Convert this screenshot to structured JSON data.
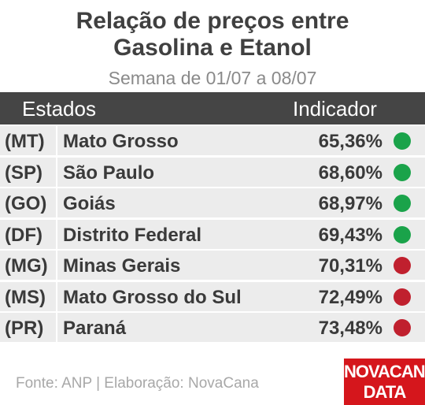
{
  "header": {
    "title": [
      "Relação de preços entre",
      "Gasolina e Etanol"
    ],
    "subtitle": "Semana de 01/07 a 08/07"
  },
  "table": {
    "columns": [
      "Estados",
      "Indicador"
    ],
    "rows": [
      {
        "code": "(MT)",
        "name": "Mato Grosso",
        "value": "65,36%",
        "color": "#1aa34a"
      },
      {
        "code": "(SP)",
        "name": "São Paulo",
        "value": "68,60%",
        "color": "#1aa34a"
      },
      {
        "code": "(GO)",
        "name": "Goiás",
        "value": "68,97%",
        "color": "#1aa34a"
      },
      {
        "code": "(DF)",
        "name": "Distrito Federal",
        "value": "69,43%",
        "color": "#1aa34a"
      },
      {
        "code": "(MG)",
        "name": "Minas Gerais",
        "value": "70,31%",
        "color": "#c0202e"
      },
      {
        "code": "(MS)",
        "name": "Mato Grosso do Sul",
        "value": "72,49%",
        "color": "#c0202e"
      },
      {
        "code": "(PR)",
        "name": "Paraná",
        "value": "73,48%",
        "color": "#c0202e"
      }
    ]
  },
  "footer": {
    "source": "Fonte: ANP | Elaboração: NovaCana",
    "logo": [
      "NOVACANA",
      "DATA"
    ]
  }
}
